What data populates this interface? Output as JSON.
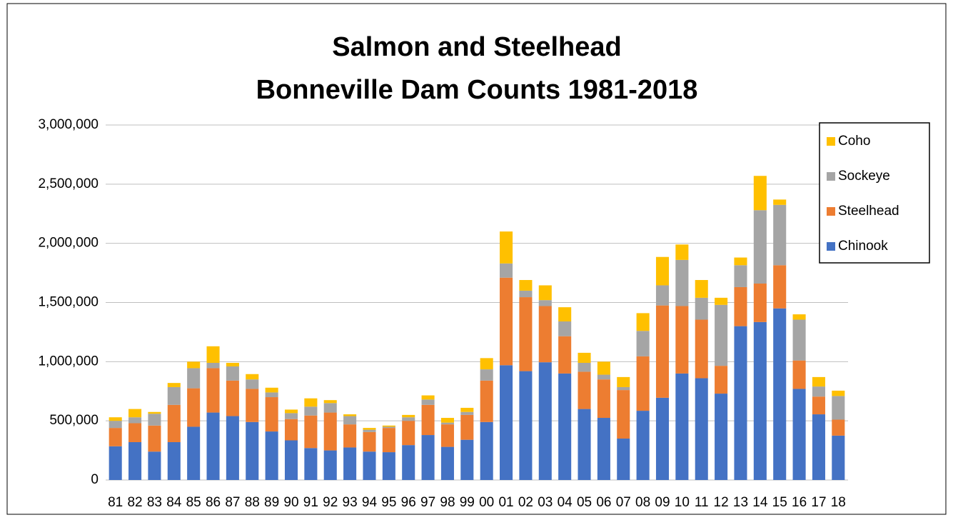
{
  "chart_data": {
    "type": "stacked-bar",
    "title": "Salmon and Steelhead",
    "subtitle": "Bonneville Dam Counts 1981-2018",
    "categories": [
      "81",
      "82",
      "83",
      "84",
      "85",
      "86",
      "87",
      "88",
      "89",
      "90",
      "91",
      "92",
      "93",
      "94",
      "95",
      "96",
      "97",
      "98",
      "99",
      "00",
      "01",
      "02",
      "03",
      "04",
      "05",
      "06",
      "07",
      "08",
      "09",
      "10",
      "11",
      "12",
      "13",
      "14",
      "15",
      "16",
      "17",
      "18"
    ],
    "series": [
      {
        "name": "Chinook",
        "color": "#4472c4",
        "values": [
          285000,
          320000,
          240000,
          320000,
          450000,
          570000,
          540000,
          490000,
          410000,
          335000,
          270000,
          250000,
          275000,
          240000,
          235000,
          295000,
          380000,
          280000,
          340000,
          490000,
          970000,
          920000,
          995000,
          900000,
          600000,
          525000,
          350000,
          585000,
          695000,
          900000,
          860000,
          730000,
          1300000,
          1335000,
          1450000,
          770000,
          555000,
          375000
        ]
      },
      {
        "name": "Steelhead",
        "color": "#ed7d31",
        "values": [
          155000,
          160000,
          220000,
          315000,
          325000,
          375000,
          300000,
          280000,
          290000,
          180000,
          275000,
          320000,
          195000,
          165000,
          205000,
          205000,
          255000,
          190000,
          210000,
          350000,
          740000,
          625000,
          475000,
          315000,
          315000,
          325000,
          410000,
          460000,
          780000,
          570000,
          495000,
          235000,
          330000,
          325000,
          365000,
          240000,
          150000,
          135000
        ]
      },
      {
        "name": "Sockeye",
        "color": "#a5a5a5",
        "values": [
          60000,
          50000,
          100000,
          150000,
          170000,
          45000,
          120000,
          80000,
          40000,
          50000,
          75000,
          80000,
          70000,
          20000,
          10000,
          30000,
          45000,
          15000,
          25000,
          95000,
          120000,
          55000,
          50000,
          125000,
          75000,
          40000,
          25000,
          215000,
          170000,
          390000,
          185000,
          515000,
          185000,
          620000,
          510000,
          345000,
          85000,
          200000
        ]
      },
      {
        "name": "Coho",
        "color": "#ffc000",
        "values": [
          30000,
          70000,
          15000,
          35000,
          55000,
          140000,
          30000,
          45000,
          40000,
          30000,
          70000,
          25000,
          15000,
          15000,
          10000,
          20000,
          35000,
          40000,
          35000,
          95000,
          270000,
          90000,
          125000,
          120000,
          85000,
          110000,
          85000,
          150000,
          240000,
          130000,
          150000,
          60000,
          65000,
          290000,
          45000,
          45000,
          80000,
          45000
        ]
      }
    ],
    "ylim": [
      0,
      3000000
    ],
    "yticks": [
      0,
      {
        "value": 500000,
        "label": "500,000"
      },
      {
        "value": 1000000,
        "label": "1,000,000"
      },
      {
        "value": 1500000,
        "label": "1,500,000"
      },
      {
        "value": 2000000,
        "label": "2,000,000"
      },
      {
        "value": 2500000,
        "label": "2,500,000"
      },
      {
        "value": 3000000,
        "label": "3,000,000"
      }
    ],
    "grid": true,
    "legend": "upper right"
  }
}
